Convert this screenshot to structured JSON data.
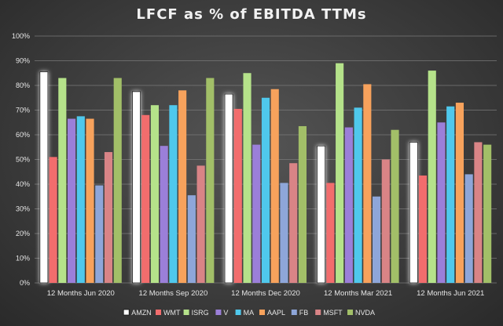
{
  "chart_data": {
    "type": "bar",
    "title": "LFCF as % of EBITDA TTMs",
    "categories": [
      "12 Months Jun 2020",
      "12 Months Sep 2020",
      "12 Months Dec 2020",
      "12 Months Mar 2021",
      "12 Months Jun 2021"
    ],
    "y_ticks": [
      "0%",
      "10%",
      "20%",
      "30%",
      "40%",
      "50%",
      "60%",
      "70%",
      "80%",
      "90%",
      "100%"
    ],
    "ylim": [
      0,
      100
    ],
    "grid": true,
    "legend_position": "bottom",
    "series": [
      {
        "name": "AMZN",
        "color": "#ffffff",
        "values": [
          85.5,
          77.5,
          76.5,
          55.5,
          57.0
        ]
      },
      {
        "name": "WMT",
        "color": "#f26d6d",
        "values": [
          51.0,
          68.0,
          70.5,
          40.5,
          43.5
        ]
      },
      {
        "name": "ISRG",
        "color": "#b5e28a",
        "values": [
          83.0,
          72.0,
          85.0,
          89.0,
          86.0
        ]
      },
      {
        "name": "V",
        "color": "#9b7fd9",
        "values": [
          66.5,
          55.5,
          56.0,
          63.0,
          65.0
        ]
      },
      {
        "name": "MA",
        "color": "#4fc8ec",
        "values": [
          67.5,
          72.0,
          75.0,
          71.0,
          71.5
        ]
      },
      {
        "name": "AAPL",
        "color": "#f7a25c",
        "values": [
          66.5,
          78.0,
          78.5,
          80.5,
          73.0
        ]
      },
      {
        "name": "FB",
        "color": "#8ea6d9",
        "values": [
          39.5,
          35.5,
          40.5,
          35.0,
          44.0
        ]
      },
      {
        "name": "MSFT",
        "color": "#d98486",
        "values": [
          53.0,
          47.5,
          48.5,
          50.0,
          57.0
        ]
      },
      {
        "name": "NVDA",
        "color": "#a2bf68",
        "values": [
          83.0,
          83.0,
          63.5,
          62.0,
          56.0
        ]
      }
    ]
  }
}
